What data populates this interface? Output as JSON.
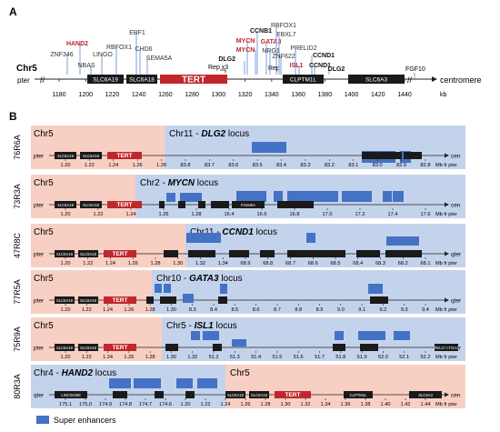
{
  "panel_a": {
    "letter": "A",
    "chrom": "Chr5",
    "pter": "pter",
    "centromere": "centromere",
    "kb": "kb",
    "ticks": [
      "1180",
      "1200",
      "1220",
      "1240",
      "1260",
      "1280",
      "1300",
      "1320",
      "1340",
      "1360",
      "1380",
      "1400",
      "1420",
      "1440"
    ],
    "genes": [
      {
        "label": "SLC6A19"
      },
      {
        "label": "SLC6A18"
      },
      {
        "label": "TERT"
      },
      {
        "label": "CLPTM1L"
      },
      {
        "label": "SLC6A3"
      }
    ],
    "rep_x3": "Rep x3",
    "rep": "Rep",
    "fgf10": "FGF10",
    "breakpoints": [
      {
        "label": "HAND2",
        "color": "#c0272d"
      },
      {
        "label": "ZNF346",
        "color": "#333333"
      },
      {
        "label": "NBAS",
        "color": "#333333"
      },
      {
        "label": "LINGO",
        "color": "#333333"
      },
      {
        "label": "RBFOX1",
        "color": "#333333"
      },
      {
        "label": "EBF1",
        "color": "#333333"
      },
      {
        "label": "CHD6",
        "color": "#333333"
      },
      {
        "label": "SEMA5A",
        "color": "#333333"
      },
      {
        "label": "DLG2",
        "color": "#111111"
      },
      {
        "label": "MYCN",
        "color": "#c0272d"
      },
      {
        "label": "CCNB1",
        "color": "#111111"
      },
      {
        "label": "MYCN",
        "color": "#c0272d"
      },
      {
        "label": "GATA3",
        "color": "#c0272d"
      },
      {
        "label": "NRG1",
        "color": "#333333"
      },
      {
        "label": "RBFOX1",
        "color": "#333333"
      },
      {
        "label": "FBXL7",
        "color": "#333333"
      },
      {
        "label": "ZNF622",
        "color": "#333333"
      },
      {
        "label": "PRELID2",
        "color": "#333333"
      },
      {
        "label": "ISL1",
        "color": "#c0272d"
      },
      {
        "label": "CCND1",
        "color": "#111111"
      },
      {
        "label": "CCND1",
        "color": "#111111"
      },
      {
        "label": "DLG2",
        "color": "#111111"
      }
    ]
  },
  "panel_b": {
    "letter": "B",
    "legend": "Super enhancers",
    "rows": [
      {
        "sample": "76R6A",
        "title_a": "Chr5",
        "title_b_pre": "Chr11 - ",
        "title_b_gene": "DLG2",
        "title_b_post": " locus",
        "left_end": "pter",
        "right_end": "cen",
        "unit": "Mb fr pter",
        "genes": [
          "SLC6A19",
          "SLC6A18",
          "TERT"
        ],
        "ticks": [
          "1.20",
          "1.22",
          "1.24",
          "1.26",
          "1.28",
          "83.8",
          "83.7",
          "83.6",
          "83.5",
          "83.4",
          "83.3",
          "83.2",
          "83.1",
          "83.0",
          "82.9",
          "82.8"
        ]
      },
      {
        "sample": "73R3A",
        "title_a": "Chr5",
        "title_b_pre": "Chr2 - ",
        "title_b_gene": "MYCN",
        "title_b_post": " locus",
        "left_end": "pter",
        "right_end": "cen",
        "unit": "Mb fr pter",
        "genes": [
          "SLC6A19",
          "SLC6A18",
          "TERT",
          "FAM49A"
        ],
        "ticks": [
          "1.20",
          "1.22",
          "1.24",
          "1.26",
          "1.28",
          "16.4",
          "16.6",
          "16.8",
          "17.0",
          "17.2",
          "17.4",
          "17.6"
        ]
      },
      {
        "sample": "47R8C",
        "title_a": "Chr5",
        "title_b_pre": "Chr11 - ",
        "title_b_gene": "CCND1",
        "title_b_post": " locus",
        "left_end": "pter",
        "right_end": "qter",
        "unit": "Mb fr pter",
        "genes": [
          "SLC6A19",
          "SLC6A18",
          "TERT"
        ],
        "ticks": [
          "1.20",
          "1.22",
          "1.24",
          "1.26",
          "1.28",
          "1.30",
          "1.32",
          "1.34",
          "68.9",
          "68.8",
          "68.7",
          "68.6",
          "68.5",
          "68.4",
          "68.3",
          "68.2",
          "68.1"
        ]
      },
      {
        "sample": "77R5A",
        "title_a": "Chr5",
        "title_b_pre": "Chr10 - ",
        "title_b_gene": "GATA3",
        "title_b_post": " locus",
        "left_end": "pter",
        "right_end": "qter",
        "unit": "Mb fr pter",
        "genes": [
          "SLC6A19",
          "SLC6A18",
          "TERT"
        ],
        "ticks": [
          "1.20",
          "1.22",
          "1.24",
          "1.26",
          "1.28",
          "1.30",
          "8.3",
          "8.4",
          "8.5",
          "8.6",
          "8.7",
          "8.8",
          "8.9",
          "9.0",
          "9.1",
          "9.2",
          "9.3",
          "9.4"
        ]
      },
      {
        "sample": "75R9A",
        "title_a": "Chr5",
        "title_b_pre": "Chr5 - ",
        "title_b_gene": "ISL1",
        "title_b_post": " locus",
        "left_end": "pter",
        "right_end": "qter",
        "unit": "Mb fr pter",
        "genes": [
          "SLC6A19",
          "SLC6A18",
          "TERT",
          "PELO / ITGA1"
        ],
        "ticks": [
          "1.20",
          "1.22",
          "1.24",
          "1.26",
          "1.28",
          "1.30",
          "1.32",
          "51.2",
          "51.3",
          "51.4",
          "51.5",
          "51.6",
          "51.7",
          "51.8",
          "51.9",
          "52.0",
          "52.1",
          "52.2"
        ]
      },
      {
        "sample": "80R3A",
        "title_a": "Chr4 - ",
        "title_a_gene": "HAND2",
        "title_a_post": " locus",
        "title_b": "Chr5",
        "left_end": "qter",
        "right_end": "cen",
        "unit": "Mb fr pter",
        "genes": [
          "LINC02268",
          "SLC6A19",
          "SLC6A18",
          "TERT",
          "CLPTM1L",
          "SLC6A3"
        ],
        "ticks": [
          "175.1",
          "175.0",
          "174.9",
          "174.8",
          "174.7",
          "174.6",
          "1.20",
          "1.22",
          "1.24",
          "1.26",
          "1.28",
          "1.30",
          "1.32",
          "1.34",
          "1.36",
          "1.38",
          "1.40",
          "1.42",
          "1.44"
        ]
      }
    ]
  },
  "colors": {
    "chr5_bg": "#f8cfc3",
    "partner_bg": "#c4d3ec",
    "super_enhancer": "#4472c4",
    "tert": "#c0272d",
    "gene": "#1a1a1a"
  }
}
